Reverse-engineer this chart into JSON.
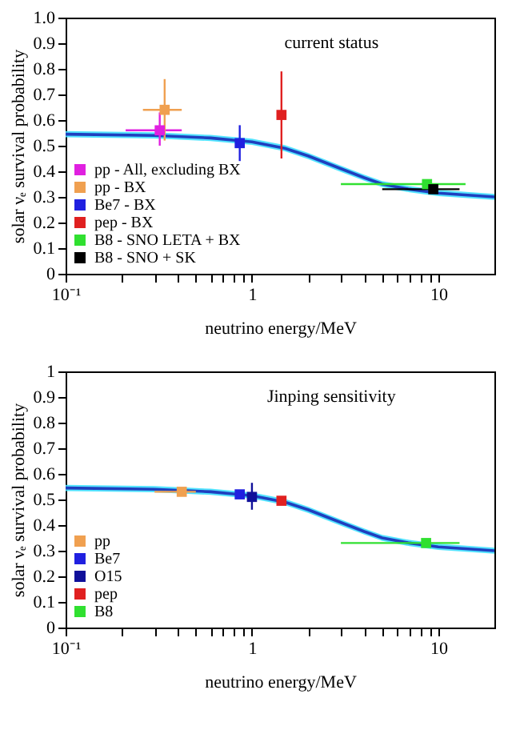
{
  "chart_data": [
    {
      "type": "scatter",
      "title": "current status",
      "xlabel": "neutrino energy/MeV",
      "ylabel": "solar νₑ survival probability",
      "log": "x",
      "xlim": [
        0.1,
        20
      ],
      "ylim": [
        0,
        1
      ],
      "xticks": [
        {
          "value": 0.1,
          "label": "10⁻¹"
        },
        {
          "value": 0.2,
          "label": null
        },
        {
          "value": 0.3,
          "label": null
        },
        {
          "value": 0.4,
          "label": null
        },
        {
          "value": 0.5,
          "label": null
        },
        {
          "value": 0.6,
          "label": null
        },
        {
          "value": 0.7,
          "label": null
        },
        {
          "value": 0.8,
          "label": null
        },
        {
          "value": 0.9,
          "label": null
        },
        1,
        {
          "value": 2,
          "label": null
        },
        {
          "value": 3,
          "label": null
        },
        {
          "value": 4,
          "label": null
        },
        {
          "value": 5,
          "label": null
        },
        {
          "value": 6,
          "label": null
        },
        {
          "value": 7,
          "label": null
        },
        {
          "value": 8,
          "label": null
        },
        {
          "value": 9,
          "label": null
        },
        10
      ],
      "yticks": [
        0,
        0.1,
        0.2,
        0.3,
        0.4,
        0.5,
        0.6,
        0.7,
        0.8,
        0.9,
        {
          "value": 1,
          "label": "1.0"
        }
      ],
      "legend": "bottom left",
      "marker": "square",
      "grid": false,
      "series": [
        {
          "type": "line",
          "marker": "none",
          "color": "#1f3fbf",
          "x": [
            0.1,
            0.3,
            0.6,
            1,
            1.5,
            2,
            3,
            4,
            5,
            7,
            10,
            20
          ],
          "values": [
            0.545,
            0.54,
            0.53,
            0.515,
            0.49,
            0.46,
            0.41,
            0.375,
            0.35,
            0.33,
            0.315,
            0.3
          ],
          "lower": [
            0.533,
            0.528,
            0.518,
            0.503,
            0.478,
            0.448,
            0.398,
            0.363,
            0.338,
            0.318,
            0.303,
            0.288
          ],
          "upper": [
            0.557,
            0.552,
            0.542,
            0.527,
            0.502,
            0.472,
            0.422,
            0.387,
            0.362,
            0.342,
            0.327,
            0.312
          ]
        },
        {
          "name": "pp - All, excluding BX",
          "color": "#e020e0",
          "x": [
            0.32
          ],
          "values": [
            0.56
          ],
          "errors": [
            [
              0.5,
              0.63
            ]
          ],
          "xerrors": [
            [
              0.21,
              0.42
            ]
          ]
        },
        {
          "name": "pp - BX",
          "color": "#f0a050",
          "x": [
            0.34
          ],
          "values": [
            0.64
          ],
          "errors": [
            [
              0.52,
              0.76
            ]
          ],
          "xerrors": [
            [
              0.26,
              0.42
            ]
          ]
        },
        {
          "name": "Be7 - BX",
          "color": "#2020e0",
          "x": [
            0.86
          ],
          "values": [
            0.51
          ],
          "errors": [
            [
              0.44,
              0.58
            ]
          ],
          "xerrors": [
            null
          ]
        },
        {
          "name": "pep - BX",
          "color": "#e02020",
          "x": [
            1.44
          ],
          "values": [
            0.62
          ],
          "errors": [
            [
              0.45,
              0.79
            ]
          ],
          "xerrors": [
            null
          ]
        },
        {
          "name": "B8 - SNO LETA + BX",
          "color": "#30e030",
          "x": [
            8.7
          ],
          "values": [
            0.35
          ],
          "errors": [
            null
          ],
          "xerrors": [
            [
              3,
              14
            ]
          ]
        },
        {
          "name": "B8 - SNO + SK",
          "color": "#000000",
          "x": [
            9.4
          ],
          "values": [
            0.33
          ],
          "errors": [
            [
              0.32,
              0.345
            ]
          ],
          "xerrors": [
            [
              5,
              13
            ]
          ]
        }
      ]
    },
    {
      "type": "scatter",
      "title": "Jinping sensitivity",
      "xlabel": "neutrino energy/MeV",
      "ylabel": "solar νₑ survival probability",
      "log": "x",
      "xlim": [
        0.1,
        20
      ],
      "ylim": [
        0,
        1
      ],
      "xticks": [
        {
          "value": 0.1,
          "label": "10⁻¹"
        },
        {
          "value": 0.2,
          "label": null
        },
        {
          "value": 0.3,
          "label": null
        },
        {
          "value": 0.4,
          "label": null
        },
        {
          "value": 0.5,
          "label": null
        },
        {
          "value": 0.6,
          "label": null
        },
        {
          "value": 0.7,
          "label": null
        },
        {
          "value": 0.8,
          "label": null
        },
        {
          "value": 0.9,
          "label": null
        },
        1,
        {
          "value": 2,
          "label": null
        },
        {
          "value": 3,
          "label": null
        },
        {
          "value": 4,
          "label": null
        },
        {
          "value": 5,
          "label": null
        },
        {
          "value": 6,
          "label": null
        },
        {
          "value": 7,
          "label": null
        },
        {
          "value": 8,
          "label": null
        },
        {
          "value": 9,
          "label": null
        },
        10
      ],
      "yticks": [
        0,
        0.1,
        0.2,
        0.3,
        0.4,
        0.5,
        0.6,
        0.7,
        0.8,
        0.9,
        1
      ],
      "legend": "bottom left",
      "marker": "square",
      "grid": false,
      "series": [
        {
          "type": "line",
          "marker": "none",
          "color": "#1f3fbf",
          "x": [
            0.1,
            0.3,
            0.6,
            1,
            1.5,
            2,
            3,
            4,
            5,
            7,
            10,
            20
          ],
          "values": [
            0.545,
            0.54,
            0.53,
            0.515,
            0.49,
            0.46,
            0.41,
            0.375,
            0.35,
            0.33,
            0.315,
            0.3
          ],
          "lower": [
            0.533,
            0.528,
            0.518,
            0.503,
            0.478,
            0.448,
            0.398,
            0.363,
            0.338,
            0.318,
            0.303,
            0.288
          ],
          "upper": [
            0.557,
            0.552,
            0.542,
            0.527,
            0.502,
            0.472,
            0.422,
            0.387,
            0.362,
            0.342,
            0.327,
            0.312
          ]
        },
        {
          "name": "pp",
          "color": "#f0a050",
          "x": [
            0.42
          ],
          "values": [
            0.53
          ],
          "errors": [
            null
          ],
          "xerrors": [
            [
              0.3,
              0.5
            ]
          ]
        },
        {
          "name": "Be7",
          "color": "#2020e0",
          "x": [
            0.86
          ],
          "values": [
            0.52
          ],
          "errors": [
            null
          ],
          "xerrors": [
            null
          ]
        },
        {
          "name": "O15",
          "color": "#10109a",
          "x": [
            1.0
          ],
          "values": [
            0.51
          ],
          "errors": [
            [
              0.46,
              0.565
            ]
          ],
          "xerrors": [
            null
          ]
        },
        {
          "name": "pep",
          "color": "#e02020",
          "x": [
            1.44
          ],
          "values": [
            0.495
          ],
          "errors": [
            null
          ],
          "xerrors": [
            null
          ]
        },
        {
          "name": "B8",
          "color": "#30e030",
          "x": [
            8.6
          ],
          "values": [
            0.33
          ],
          "errors": [
            null
          ],
          "xerrors": [
            [
              3,
              13
            ]
          ]
        }
      ]
    }
  ]
}
